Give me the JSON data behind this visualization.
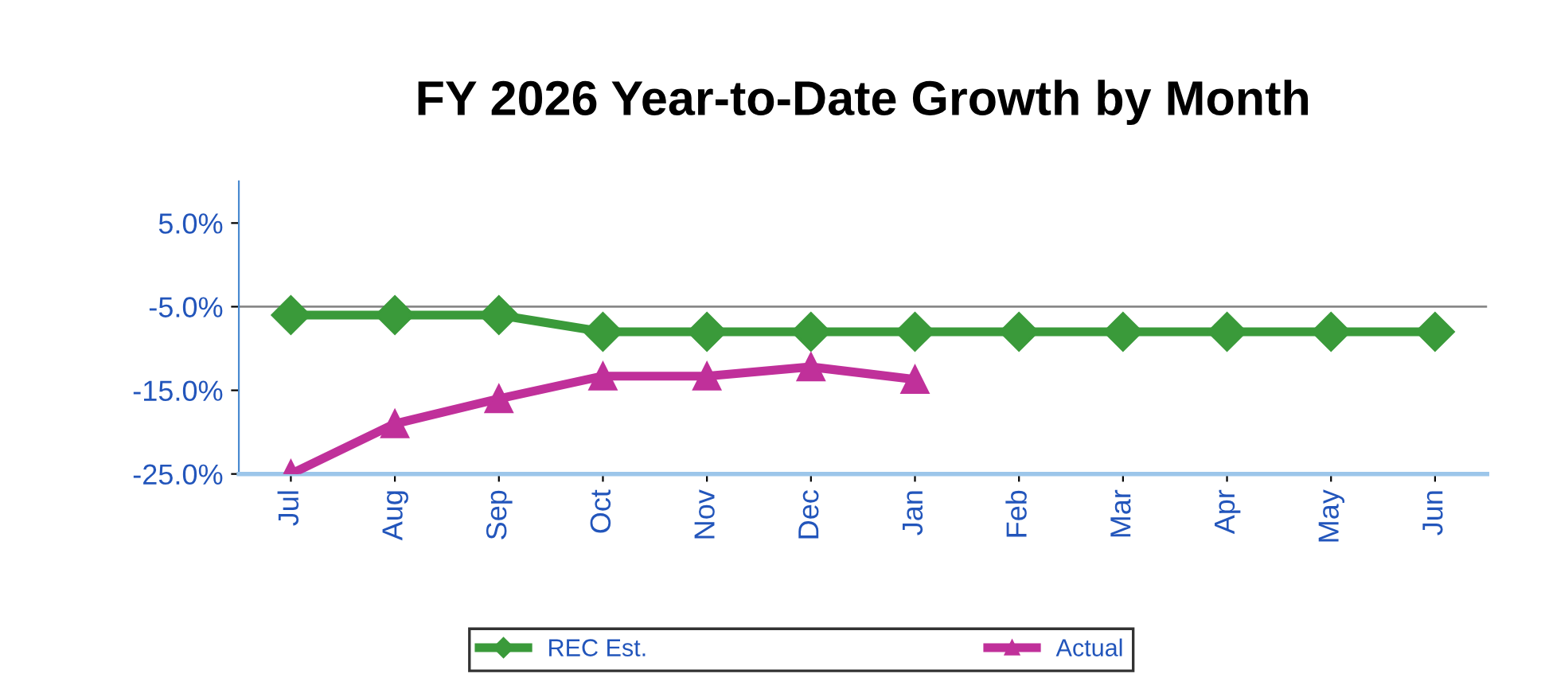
{
  "chart_data": {
    "type": "line",
    "title": "FY 2026 Year-to-Date Growth by Month",
    "categories": [
      "Jul",
      "Aug",
      "Sep",
      "Oct",
      "Nov",
      "Dec",
      "Jan",
      "Feb",
      "Mar",
      "Apr",
      "May",
      "Jun"
    ],
    "series": [
      {
        "name": "REC Est.",
        "color": "#3a9a3a",
        "marker": "diamond",
        "values": [
          -6.0,
          -6.0,
          -6.0,
          -8.0,
          -8.0,
          -8.0,
          -8.0,
          -8.0,
          -8.0,
          -8.0,
          -8.0,
          -8.0
        ]
      },
      {
        "name": "Actual",
        "color": "#c0309a",
        "marker": "triangle",
        "values": [
          -25.0,
          -19.0,
          -16.0,
          -13.3,
          -13.3,
          -12.2,
          -13.7,
          null,
          null,
          null,
          null,
          null
        ]
      }
    ],
    "ylim": [
      -25,
      10
    ],
    "yticks": [
      {
        "value": 5,
        "label": "5.0%"
      },
      {
        "value": -5,
        "label": "-5.0%"
      },
      {
        "value": -15,
        "label": "-15.0%"
      },
      {
        "value": -25,
        "label": "-25.0%"
      }
    ],
    "ref_lines": [
      {
        "axis": "y",
        "value": -5,
        "color": "#888888"
      }
    ],
    "grid": false,
    "legend": "bottom",
    "line_style": "solid"
  }
}
